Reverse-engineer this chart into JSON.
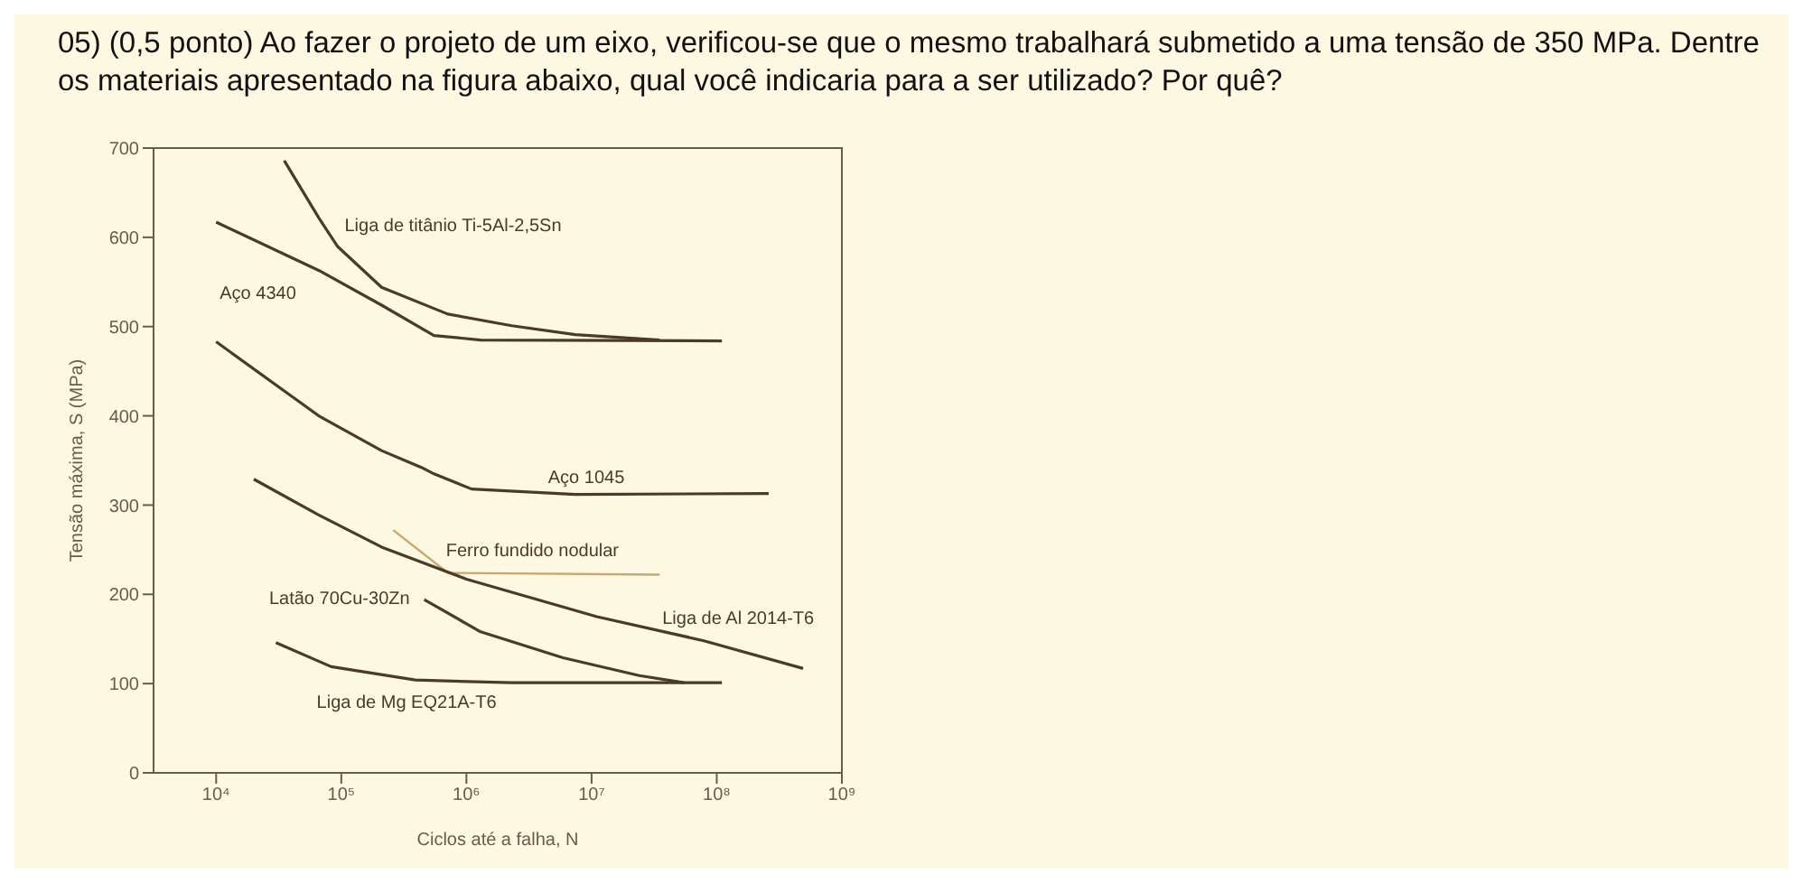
{
  "chart_data": {
    "type": "line",
    "title": "05) (0,5 ponto) Ao fazer o projeto de um eixo, verificou-se que o mesmo trabalhará submetido a uma tensão de 350 MPa. Dentre os materiais apresentado na figura abaixo, qual você indicaria para a ser utilizado? Por quê?",
    "xlabel": "Ciclos até a falha, N",
    "ylabel": "Tensão máxima, S (MPa)",
    "log": "x",
    "xlim": [
      3162,
      1000000000
    ],
    "xticks": [
      {
        "value": 10000,
        "label": "10⁴"
      },
      {
        "value": 100000,
        "label": "10⁵"
      },
      {
        "value": 1000000,
        "label": "10⁶"
      },
      {
        "value": 10000000,
        "label": "10⁷"
      },
      {
        "value": 100000000,
        "label": "10⁸"
      },
      {
        "value": 1000000000,
        "label": "10⁹"
      }
    ],
    "ylim": [
      0,
      700
    ],
    "yticks": [
      0,
      100,
      200,
      300,
      400,
      500,
      600,
      700
    ],
    "grid": false,
    "legend": false,
    "marker": "none",
    "line_style": "solid",
    "series": [
      {
        "name": "Liga de titânio Ti-5Al-2,5Sn",
        "color": "#4a3a28",
        "x": [
          35000,
          66000,
          93000,
          210000,
          710000,
          2300000,
          7400000,
          35000000
        ],
        "values": [
          686,
          622,
          590,
          544,
          514,
          501,
          491,
          485
        ]
      },
      {
        "name": "Aço 4340",
        "color": "#4a3a28",
        "x": [
          10000,
          66000,
          210000,
          550000,
          1300000,
          110000000
        ],
        "values": [
          617,
          563,
          524,
          490,
          485,
          484
        ]
      },
      {
        "name": "Aço 1045",
        "color": "#4a3a28",
        "x": [
          10000,
          66000,
          210000,
          440000,
          550000,
          1100000,
          7400000,
          260000000
        ],
        "values": [
          483,
          400,
          361,
          342,
          335,
          318,
          312,
          313
        ]
      },
      {
        "name": "Ferro fundido nodular",
        "color": "#c8a870",
        "x": [
          260000,
          710000,
          35000000
        ],
        "values": [
          272,
          224,
          222
        ]
      },
      {
        "name": "Liga de Al 2014-T6",
        "color": "#4a3a28",
        "x": [
          20000,
          66000,
          210000,
          1000000,
          11000000,
          79000000,
          490000000
        ],
        "values": [
          329,
          289,
          253,
          217,
          175,
          148,
          117
        ]
      },
      {
        "name": "Latão 70Cu-30Zn",
        "color": "#4a3a28",
        "x": [
          460000,
          1300000,
          5900000,
          24000000,
          55000000
        ],
        "values": [
          194,
          158,
          129,
          109,
          101
        ]
      },
      {
        "name": "Liga de Mg EQ21A-T6",
        "color": "#4a3a28",
        "x": [
          30000,
          83000,
          390000,
          2300000,
          110000000
        ],
        "values": [
          146,
          119,
          104,
          101,
          101
        ]
      }
    ]
  }
}
